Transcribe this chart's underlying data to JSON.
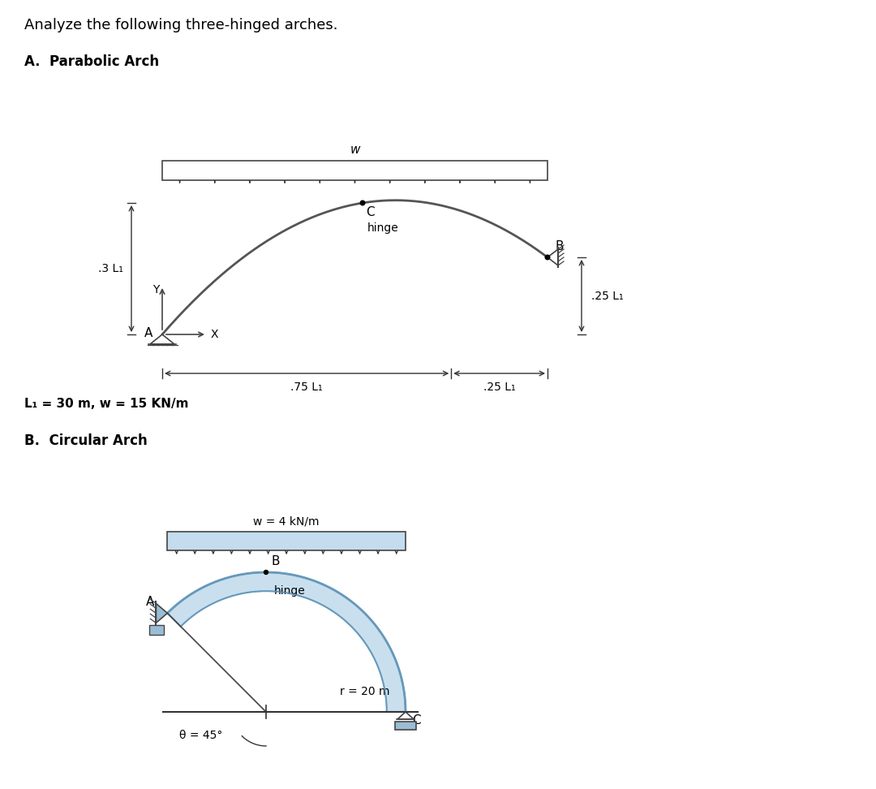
{
  "title": "Analyze the following three-hinged arches.",
  "section_A": "A.  Parabolic Arch",
  "section_B": "B.  Circular Arch",
  "label_L1": "L₁ = 30 m, w = 15 KN/m",
  "label_w_circ": "w = 4 kN/m",
  "label_r": "r = 20 m",
  "label_theta": "θ = 45°",
  "bg_color": "#ffffff",
  "arch_color": "#555555",
  "dim_color": "#333333",
  "circ_fill": "#c4dced",
  "circ_edge": "#6699bb",
  "support_color": "#444444",
  "load_fill": "#ddeeff",
  "load_edge": "#444444"
}
